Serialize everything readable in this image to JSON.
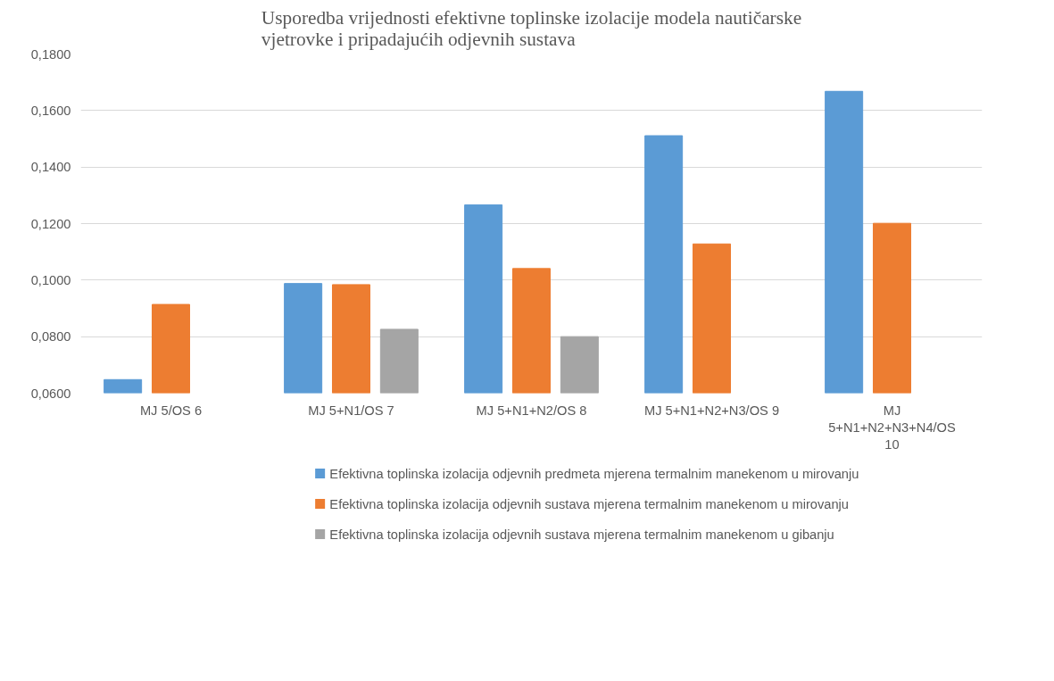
{
  "chart_data": {
    "type": "bar",
    "title": "Usporedba vrijednosti efektivne toplinske izolacije modela nautičarske vjetrovke i pripadajućih odjevnih sustava",
    "categories": [
      "MJ 5/OS 6",
      "MJ 5+N1/OS 7",
      "MJ 5+N1+N2/OS 8",
      "MJ 5+N1+N2+N3/OS 9",
      "MJ 5+N1+N2+N3+N4/OS 10"
    ],
    "series": [
      {
        "name": "Efektivna toplinska izolacija odjevnih predmeta mjerena termalnim manekenom u mirovanju",
        "color": "#5b9bd5",
        "values": [
          0.0648,
          0.0988,
          0.1266,
          0.1511,
          0.1668
        ]
      },
      {
        "name": "Efektivna toplinska izolacija odjevnih sustava mjerena termalnim manekenom u mirovanju",
        "color": "#ed7d31",
        "values": [
          0.0914,
          0.0984,
          0.1041,
          0.1128,
          0.1201
        ]
      },
      {
        "name": "Efektivna toplinska izolacija odjevnih sustava mjerena termalnim manekenom u gibanju",
        "color": "#a5a5a5",
        "values": [
          null,
          0.0826,
          0.08,
          null,
          null
        ]
      }
    ],
    "ylim": [
      0.06,
      0.18
    ],
    "yticks": [
      {
        "value": 0.06,
        "label": "0,0600"
      },
      {
        "value": 0.08,
        "label": "0,0800"
      },
      {
        "value": 0.1,
        "label": "0,1000"
      },
      {
        "value": 0.12,
        "label": "0,1200"
      },
      {
        "value": 0.14,
        "label": "0,1400"
      },
      {
        "value": 0.16,
        "label": "0,1600"
      },
      {
        "value": 0.18,
        "label": "0,1800"
      }
    ],
    "grid": "y",
    "legend": "bottom"
  }
}
